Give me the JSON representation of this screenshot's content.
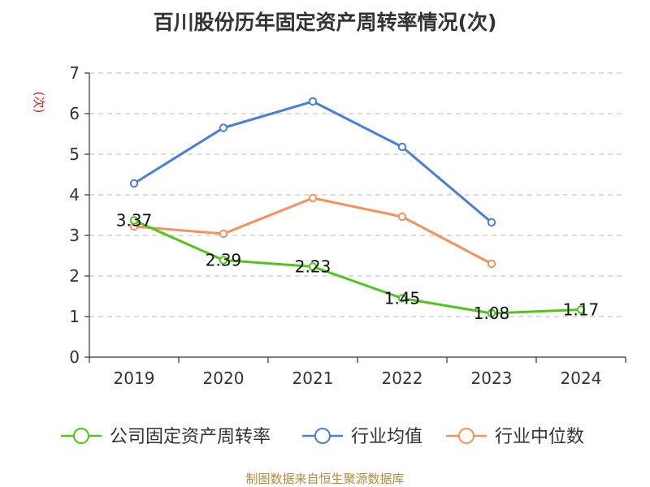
{
  "chart_data": {
    "type": "line",
    "title": "百川股份历年固定资产周转率情况(次)",
    "ylabel": "(次)",
    "xlabel": "",
    "categories": [
      "2019",
      "2020",
      "2021",
      "2022",
      "2023",
      "2024"
    ],
    "ylim": [
      0,
      7
    ],
    "yticks": [
      0,
      1,
      2,
      3,
      4,
      5,
      6,
      7
    ],
    "grid": true,
    "legend_position": "bottom",
    "series": [
      {
        "name": "公司固定资产周转率",
        "color": "#52c41a",
        "values": [
          3.37,
          2.39,
          2.23,
          1.45,
          1.08,
          1.17
        ],
        "labels": [
          "3.37",
          "2.39",
          "2.23",
          "1.45",
          "1.08",
          "1.17"
        ]
      },
      {
        "name": "行业均值",
        "color": "#4a7fd6",
        "values": [
          4.28,
          5.65,
          6.3,
          5.18,
          3.32,
          null
        ]
      },
      {
        "name": "行业中位数",
        "color": "#f5915a",
        "values": [
          3.22,
          3.04,
          3.92,
          3.46,
          2.3,
          null
        ]
      }
    ]
  },
  "source": "制图数据来自恒生聚源数据库"
}
